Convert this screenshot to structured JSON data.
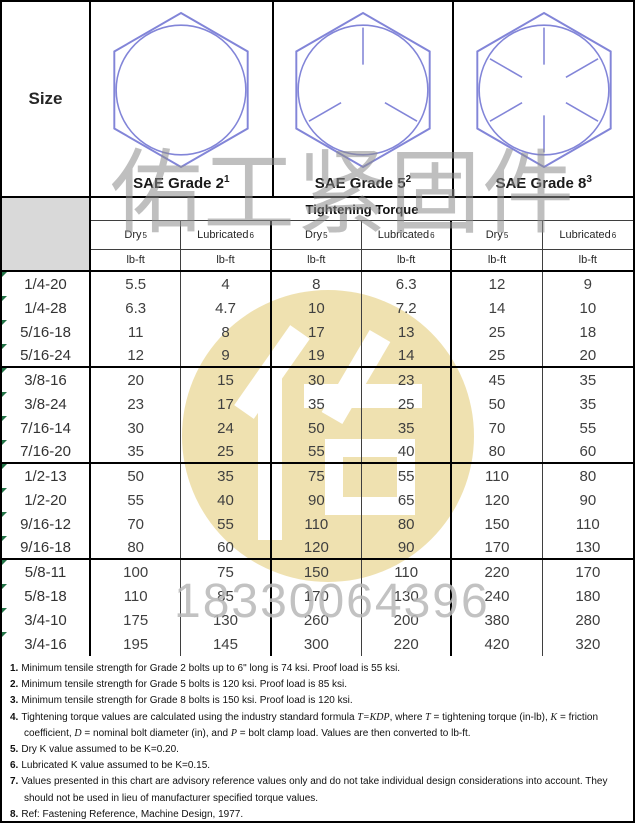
{
  "header": {
    "size_label": "Size"
  },
  "grades": [
    {
      "label": "SAE Grade 2",
      "sup": "1",
      "head_marks": 0
    },
    {
      "label": "SAE Grade 5",
      "sup": "2",
      "head_marks": 3
    },
    {
      "label": "SAE Grade 8",
      "sup": "3",
      "head_marks": 6
    }
  ],
  "table": {
    "group_header": "Tightening Torque",
    "col_headers": [
      {
        "label": "Dry",
        "sup": "5"
      },
      {
        "label": "Lubricated",
        "sup": "6"
      },
      {
        "label": "Dry",
        "sup": "5"
      },
      {
        "label": "Lubricated",
        "sup": "6"
      },
      {
        "label": "Dry",
        "sup": "5"
      },
      {
        "label": "Lubricated",
        "sup": "6"
      }
    ],
    "unit": "lb-ft",
    "group_breaks": [
      3,
      7,
      11
    ],
    "rows": [
      {
        "size": "1/4-20",
        "values": [
          "5.5",
          "4",
          "8",
          "6.3",
          "12",
          "9"
        ]
      },
      {
        "size": "1/4-28",
        "values": [
          "6.3",
          "4.7",
          "10",
          "7.2",
          "14",
          "10"
        ]
      },
      {
        "size": "5/16-18",
        "values": [
          "11",
          "8",
          "17",
          "13",
          "25",
          "18"
        ]
      },
      {
        "size": "5/16-24",
        "values": [
          "12",
          "9",
          "19",
          "14",
          "25",
          "20"
        ]
      },
      {
        "size": "3/8-16",
        "values": [
          "20",
          "15",
          "30",
          "23",
          "45",
          "35"
        ]
      },
      {
        "size": "3/8-24",
        "values": [
          "23",
          "17",
          "35",
          "25",
          "50",
          "35"
        ]
      },
      {
        "size": "7/16-14",
        "values": [
          "30",
          "24",
          "50",
          "35",
          "70",
          "55"
        ]
      },
      {
        "size": "7/16-20",
        "values": [
          "35",
          "25",
          "55",
          "40",
          "80",
          "60"
        ]
      },
      {
        "size": "1/2-13",
        "values": [
          "50",
          "35",
          "75",
          "55",
          "110",
          "80"
        ]
      },
      {
        "size": "1/2-20",
        "values": [
          "55",
          "40",
          "90",
          "65",
          "120",
          "90"
        ]
      },
      {
        "size": "9/16-12",
        "values": [
          "70",
          "55",
          "110",
          "80",
          "150",
          "110"
        ]
      },
      {
        "size": "9/16-18",
        "values": [
          "80",
          "60",
          "120",
          "90",
          "170",
          "130"
        ]
      },
      {
        "size": "5/8-11",
        "values": [
          "100",
          "75",
          "150",
          "110",
          "220",
          "170"
        ]
      },
      {
        "size": "5/8-18",
        "values": [
          "110",
          "85",
          "170",
          "130",
          "240",
          "180"
        ]
      },
      {
        "size": "3/4-10",
        "values": [
          "175",
          "130",
          "260",
          "200",
          "380",
          "280"
        ]
      },
      {
        "size": "3/4-16",
        "values": [
          "195",
          "145",
          "300",
          "220",
          "420",
          "320"
        ]
      }
    ]
  },
  "footnotes": [
    {
      "num": "1.",
      "text": "Minimum tensile strength for Grade 2 bolts up to 6\" long is 74 ksi. Proof load is 55 ksi."
    },
    {
      "num": "2.",
      "text": "Minimum tensile strength for Grade 5 bolts is 120 ksi. Proof load is 85 ksi."
    },
    {
      "num": "3.",
      "text": "Minimum tensile strength for Grade 8 bolts is 150 ksi. Proof load is 120 ksi."
    },
    {
      "num": "4.",
      "parts": [
        {
          "text": "Tightening torque values are calculated using the industry standard formula ",
          "italic": false
        },
        {
          "text": "T=KDP",
          "italic": true
        },
        {
          "text": ", where ",
          "italic": false
        },
        {
          "text": "T",
          "italic": true
        },
        {
          "text": " = tightening torque (in-lb), ",
          "italic": false
        },
        {
          "text": "K",
          "italic": true
        },
        {
          "text": " = friction coefficient, ",
          "italic": false
        },
        {
          "text": "D",
          "italic": true
        },
        {
          "text": " = nominal bolt diameter (in), and ",
          "italic": false
        },
        {
          "text": "P",
          "italic": true
        },
        {
          "text": " = bolt clamp load. Values are then converted to lb-ft.",
          "italic": false
        }
      ]
    },
    {
      "num": "5.",
      "text": "Dry K value assumed to be K=0.20."
    },
    {
      "num": "6.",
      "text": "Lubricated K value assumed to be K=0.15."
    },
    {
      "num": "7.",
      "text": "Values presented in this chart are advisory reference values only and do not take individual design considerations into account.  They should not be used in lieu of manufacturer specified torque values."
    },
    {
      "num": "8.",
      "text": "Ref: Fastening Reference, Machine Design, 1977."
    }
  ],
  "watermarks": {
    "company": "佑工紧固件",
    "phone": "18330064396"
  },
  "colors": {
    "hex_stroke": "#8285d8",
    "logo_yellow": "#eddda6",
    "flag_green": "#217346",
    "corner_gray": "#d9d9d9"
  }
}
